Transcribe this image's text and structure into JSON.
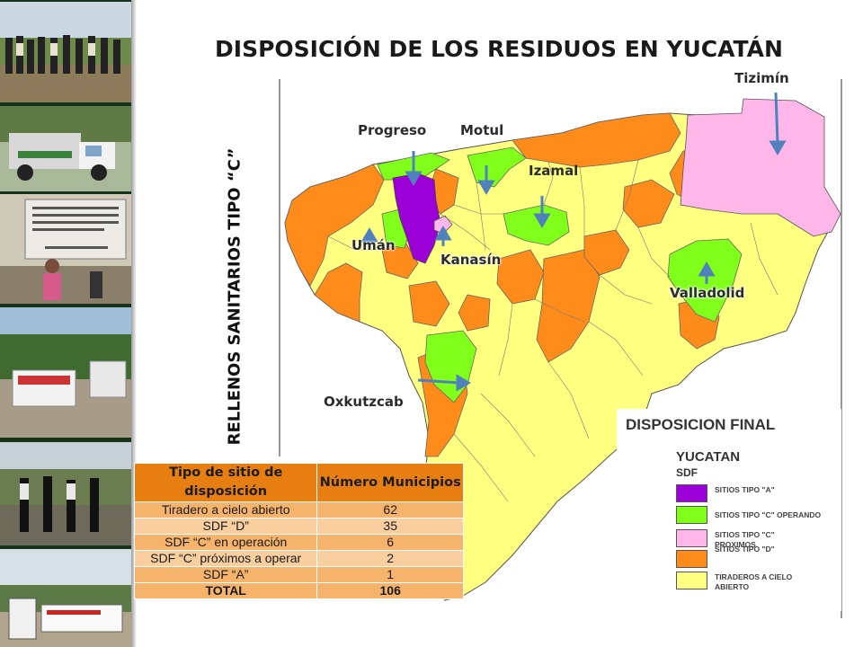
{
  "title": "DISPOSICIÓN DE LOS RESIDUOS EN YUCATÁN",
  "vertical_label": "RELLENOS SANITARIOS TIPO “C”",
  "cities": {
    "tizimin": "Tizimín",
    "progreso": "Progreso",
    "motul": "Motul",
    "izamal": "Izamal",
    "uman": "Umán",
    "kanasin": "Kanasín",
    "valladolid": "Valladolid",
    "oxkutzcab": "Oxkutzcab"
  },
  "legend": {
    "title": "DISPOSICION FINAL",
    "subtitle": "YUCATAN",
    "group": "SDF",
    "items": [
      {
        "label": "SITIOS TIPO \"A\"",
        "color": "#9b00d6"
      },
      {
        "label": "SITIOS TIPO \"C\"  OPERANDO",
        "color": "#80ff1a"
      },
      {
        "label": "SITIOS TIPO \"C\" PROXIMOS",
        "color": "#ffb6e9"
      },
      {
        "label": "SITIOS TIPO \"D\"",
        "color": "#ff8c1a"
      },
      {
        "label": "TIRADEROS A CIELO ABIERTO",
        "color": "#ffff80"
      }
    ]
  },
  "table": {
    "headers": [
      "Tipo de sitio de disposición",
      "Número Municipios"
    ],
    "rows": [
      [
        "Tiradero a cielo abierto",
        "62"
      ],
      [
        "SDF “D”",
        "35"
      ],
      [
        "SDF “C” en operación",
        "6"
      ],
      [
        "SDF “C” próximos a operar",
        "2"
      ],
      [
        "SDF “A”",
        "1"
      ]
    ],
    "total": [
      "TOTAL",
      "106"
    ]
  },
  "colors": {
    "tipo_a": "#9b00d6",
    "tipo_c_operando": "#80ff1a",
    "tipo_c_proximos": "#ffb6e9",
    "tipo_d": "#ff8c1a",
    "tiraderos": "#ffff80",
    "arrow": "#4f81bd",
    "table_header": "#e67e12",
    "table_row": "#f6b36b"
  }
}
